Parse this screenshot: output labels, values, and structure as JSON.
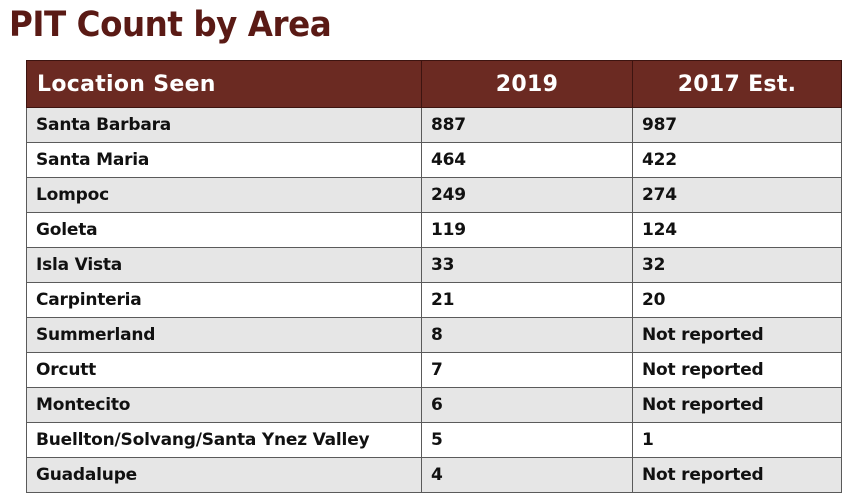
{
  "title": "PIT Count by Area",
  "table": {
    "headers": [
      "Location Seen",
      "2019",
      "2017 Est."
    ],
    "rows": [
      {
        "location": "Santa Barbara",
        "y2019": "887",
        "y2017": "987"
      },
      {
        "location": "Santa Maria",
        "y2019": "464",
        "y2017": "422"
      },
      {
        "location": "Lompoc",
        "y2019": "249",
        "y2017": "274"
      },
      {
        "location": "Goleta",
        "y2019": "119",
        "y2017": "124"
      },
      {
        "location": "Isla Vista",
        "y2019": "33",
        "y2017": "32"
      },
      {
        "location": "Carpinteria",
        "y2019": "21",
        "y2017": "20"
      },
      {
        "location": "Summerland",
        "y2019": "8",
        "y2017": "Not reported"
      },
      {
        "location": "Orcutt",
        "y2019": "7",
        "y2017": "Not reported"
      },
      {
        "location": "Montecito",
        "y2019": "6",
        "y2017": "Not reported"
      },
      {
        "location": "Buellton/Solvang/Santa Ynez Valley",
        "y2019": "5",
        "y2017": "1"
      },
      {
        "location": "Guadalupe",
        "y2019": "4",
        "y2017": "Not reported"
      }
    ]
  },
  "colors": {
    "title": "#5a1a15",
    "header_bg": "#6b2a22",
    "row_shade": "#e6e6e6"
  }
}
